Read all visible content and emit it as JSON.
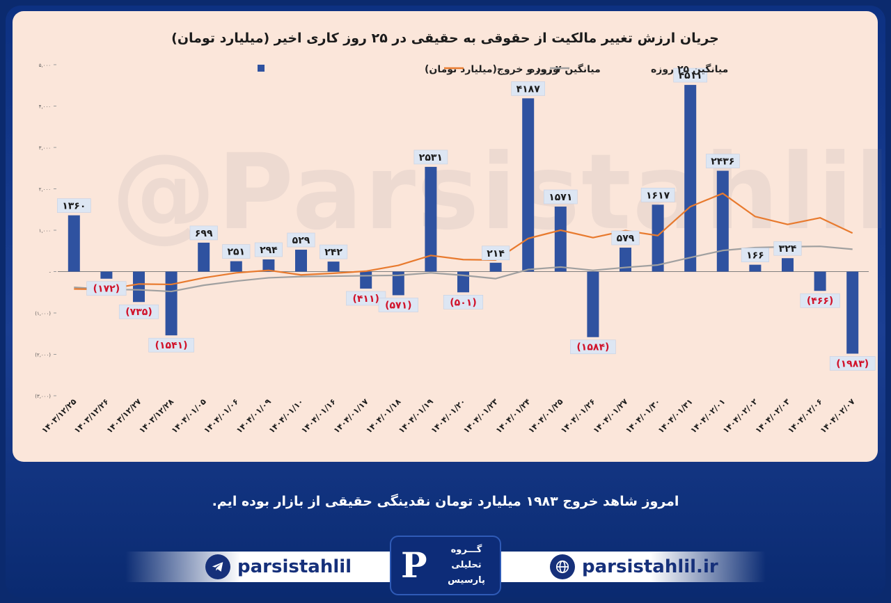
{
  "colors": {
    "bar": "#2f52a0",
    "ma7": "#e87a2e",
    "ma25": "#a0a0a0",
    "label_pos": "#1b1b1b",
    "label_neg": "#d1122a",
    "label_bg": "#dde6f3"
  },
  "icons": [
    "telegram-icon",
    "globe-icon",
    "logo-icon"
  ],
  "caption": "امروز شاهد خروج ۱۹۸۳ میلیارد تومان نقدینگی حقیقی از بازار بوده ایم.",
  "footer": {
    "telegram_handle": "parsistahlil",
    "website": "parsistahlil.ir",
    "logo_lines": [
      "گـــروه",
      "تحلیلی",
      "پارسیس"
    ]
  },
  "watermark": "@Parsistahlil",
  "chart_data": {
    "type": "bar",
    "title": "جریان ارزش تغییر مالکیت از حقوقی به حقیقی در ۲۵ روز کاری اخیر (میلیارد تومان)",
    "categories": [
      "۱۴۰۳/۱۲/۲۵",
      "۱۴۰۳/۱۲/۲۶",
      "۱۴۰۳/۱۲/۲۷",
      "۱۴۰۳/۱۲/۲۸",
      "۱۴۰۴/۰۱/۰۵",
      "۱۴۰۴/۰۱/۰۶",
      "۱۴۰۴/۰۱/۰۹",
      "۱۴۰۴/۰۱/۱۰",
      "۱۴۰۴/۰۱/۱۶",
      "۱۴۰۴/۰۱/۱۷",
      "۱۴۰۴/۰۱/۱۸",
      "۱۴۰۴/۰۱/۱۹",
      "۱۴۰۴/۰۱/۲۰",
      "۱۴۰۴/۰۱/۲۳",
      "۱۴۰۴/۰۱/۲۴",
      "۱۴۰۴/۰۱/۲۵",
      "۱۴۰۴/۰۱/۲۶",
      "۱۴۰۴/۰۱/۲۷",
      "۱۴۰۴/۰۱/۳۰",
      "۱۴۰۴/۰۱/۳۱",
      "۱۴۰۴/۰۲/۰۱",
      "۱۴۰۴/۰۲/۰۲",
      "۱۴۰۴/۰۲/۰۳",
      "۱۴۰۴/۰۲/۰۶",
      "۱۴۰۴/۰۲/۰۷"
    ],
    "series": [
      {
        "name": "ورود و خروج(میلیارد تومان)",
        "type": "bar",
        "values": [
          1360,
          -172,
          -735,
          -1541,
          699,
          251,
          294,
          529,
          242,
          -411,
          -571,
          2531,
          -501,
          214,
          4187,
          1571,
          -1584,
          579,
          1617,
          4511,
          2436,
          166,
          324,
          -466,
          -1983
        ],
        "labels": [
          "۱۳۶۰",
          "(۱۷۲)",
          "(۷۳۵)",
          "(۱۵۴۱)",
          "۶۹۹",
          "۲۵۱",
          "۲۹۴",
          "۵۲۹",
          "۲۴۲",
          "(۴۱۱)",
          "(۵۷۱)",
          "۲۵۳۱",
          "(۵۰۱)",
          "۲۱۴",
          "۴۱۸۷",
          "۱۵۷۱",
          "(۱۵۸۴)",
          "۵۷۹",
          "۱۶۱۷",
          "۴۵۱۱",
          "۲۴۳۶",
          "۱۶۶",
          "۳۲۴",
          "(۴۶۶)",
          "(۱۹۸۳)"
        ]
      },
      {
        "name": "میانگین ۷ روزه",
        "type": "line",
        "values": [
          -420,
          -430,
          -300,
          -310,
          -150,
          -30,
          30,
          -80,
          -40,
          10,
          150,
          390,
          290,
          280,
          800,
          1000,
          820,
          990,
          870,
          1570,
          1890,
          1330,
          1140,
          1300,
          930
        ]
      },
      {
        "name": "میانگین ۲۵ روزه",
        "type": "line",
        "values": [
          -380,
          -430,
          -440,
          -480,
          -330,
          -230,
          -150,
          -120,
          -110,
          -100,
          -90,
          -30,
          -90,
          -170,
          50,
          110,
          30,
          100,
          160,
          340,
          510,
          580,
          600,
          610,
          540
        ]
      }
    ],
    "yticks": [
      5000,
      4000,
      3000,
      2000,
      1000,
      0,
      -1000,
      -2000,
      -3000
    ],
    "ytick_labels": [
      "۵,۰۰۰",
      "۴,۰۰۰",
      "۳,۰۰۰",
      "۲,۰۰۰",
      "۱,۰۰۰",
      "-",
      "(۱,۰۰۰)",
      "(۲,۰۰۰)",
      "(۳,۰۰۰)"
    ],
    "ylim": [
      -3000,
      5000
    ],
    "legend_position": "top",
    "grid": false
  }
}
